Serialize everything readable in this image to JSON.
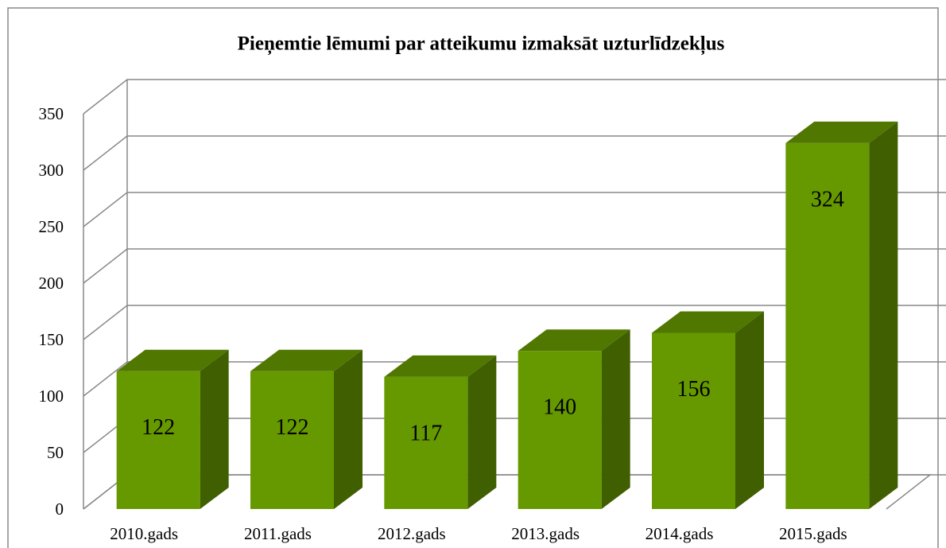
{
  "chart_data": {
    "type": "bar",
    "title": "Pieņemtie lēmumi par atteikumu izmaksāt uzturlīdzekļus",
    "categories": [
      "2010.gads",
      "2011.gads",
      "2012.gads",
      "2013.gads",
      "2014.gads",
      "2015.gads"
    ],
    "values": [
      122,
      122,
      117,
      140,
      156,
      324
    ],
    "color": "#669900",
    "ylim": [
      0,
      350
    ],
    "yticks": [
      0,
      50,
      100,
      150,
      200,
      250,
      300,
      350
    ],
    "grid": true
  }
}
